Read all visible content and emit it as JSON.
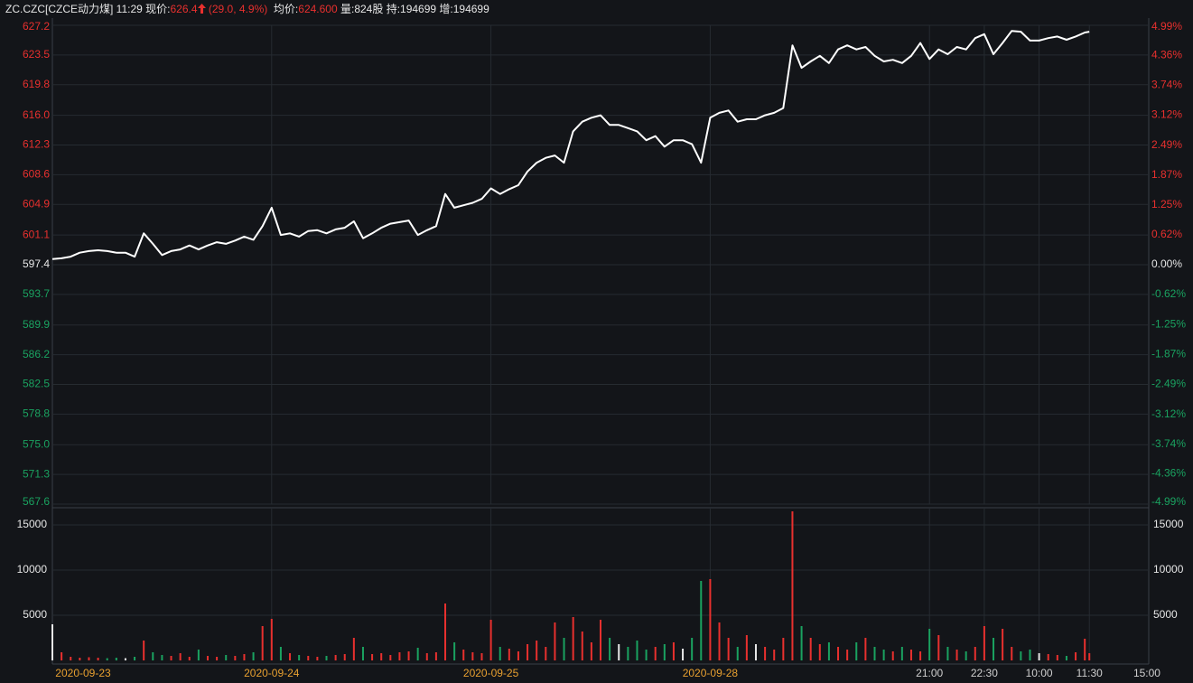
{
  "header": {
    "symbol_time": "ZC.CZC[CZCE动力煤] 11:29",
    "price_label": "现价:",
    "price": "626.4",
    "change": "(29.0, 4.9%)",
    "avg_label": "均价:",
    "avg": "624.600",
    "stats": "量:824股 持:194699 增:194699"
  },
  "chart_data": [
    {
      "type": "line",
      "color": "#ffffff",
      "x": [
        0,
        10,
        20,
        30,
        40,
        50,
        60,
        70,
        80,
        90,
        100,
        110,
        120,
        130,
        140,
        150,
        160,
        170,
        180,
        190,
        200,
        210,
        220,
        230,
        240,
        250,
        260,
        270,
        280,
        290,
        300,
        310,
        320,
        330,
        340,
        350,
        360,
        370,
        380,
        390,
        400,
        410,
        420,
        430,
        440,
        450,
        460,
        470,
        480,
        490,
        500,
        510,
        520,
        530,
        540,
        550,
        560,
        570,
        580,
        590,
        600,
        610,
        620,
        630,
        640,
        650,
        660,
        670,
        680,
        690,
        700,
        710,
        720,
        730,
        740,
        750,
        760,
        770,
        780,
        790,
        800,
        810,
        820,
        830,
        840,
        850,
        860,
        870,
        880,
        890,
        900,
        910,
        920,
        930,
        940,
        950,
        960,
        970,
        980,
        990,
        1000,
        1010,
        1020,
        1030,
        1040,
        1050,
        1060,
        1070,
        1080,
        1090,
        1100,
        1110,
        1120,
        1130,
        1135
      ],
      "values": [
        598.1,
        598.2,
        598.4,
        598.9,
        599.1,
        599.2,
        599.1,
        598.9,
        598.9,
        598.4,
        601.3,
        600.0,
        598.6,
        599.1,
        599.3,
        599.8,
        599.3,
        599.8,
        600.2,
        600.0,
        600.4,
        600.9,
        600.5,
        602.2,
        604.5,
        601.1,
        601.3,
        600.9,
        601.6,
        601.7,
        601.3,
        601.8,
        602.0,
        602.8,
        600.7,
        601.3,
        602.0,
        602.5,
        602.7,
        602.9,
        601.1,
        601.7,
        602.2,
        606.2,
        604.5,
        604.8,
        605.1,
        605.6,
        606.9,
        606.2,
        606.8,
        607.3,
        609.0,
        610.1,
        610.7,
        611.0,
        610.1,
        614.0,
        615.2,
        615.7,
        616.0,
        614.8,
        614.8,
        614.4,
        614.0,
        612.9,
        613.4,
        612.1,
        612.9,
        612.9,
        612.4,
        610.1,
        615.7,
        616.3,
        616.6,
        615.2,
        615.5,
        615.5,
        616.0,
        616.3,
        616.9,
        624.7,
        621.9,
        622.7,
        623.4,
        622.5,
        624.2,
        624.7,
        624.2,
        624.5,
        623.4,
        622.7,
        622.9,
        622.5,
        623.4,
        625.0,
        623.0,
        624.2,
        623.6,
        624.5,
        624.2,
        625.6,
        626.1,
        623.6,
        625.0,
        626.5,
        626.4,
        625.3,
        625.3,
        625.6,
        625.8,
        625.4,
        625.8,
        626.3,
        626.4
      ],
      "xlim": [
        0,
        1200
      ],
      "ylim": [
        567.6,
        627.2
      ],
      "yticks": [
        627.2,
        623.5,
        619.8,
        {
          "value": 616,
          "label": "616.0"
        },
        612.3,
        608.6,
        604.9,
        601.1,
        597.4,
        593.7,
        589.9,
        586.2,
        582.5,
        578.8,
        {
          "value": 575,
          "label": "575.0"
        },
        571.3,
        567.6
      ],
      "y2lim": [
        -4.99,
        4.99
      ],
      "y2ticks": [
        {
          "value": 4.99,
          "label": "4.99%"
        },
        {
          "value": 4.36,
          "label": "4.36%"
        },
        {
          "value": 3.74,
          "label": "3.74%"
        },
        {
          "value": 3.12,
          "label": "3.12%"
        },
        {
          "value": 2.49,
          "label": "2.49%"
        },
        {
          "value": 1.87,
          "label": "1.87%"
        },
        {
          "value": 1.25,
          "label": "1.25%"
        },
        {
          "value": 0.62,
          "label": "0.62%"
        },
        {
          "value": 0,
          "label": "0.00%"
        },
        {
          "value": -0.62,
          "label": "-0.62%"
        },
        {
          "value": -1.25,
          "label": "-1.25%"
        },
        {
          "value": -1.87,
          "label": "-1.87%"
        },
        {
          "value": -2.49,
          "label": "-2.49%"
        },
        {
          "value": -3.12,
          "label": "-3.12%"
        },
        {
          "value": -3.74,
          "label": "-3.74%"
        },
        {
          "value": -4.36,
          "label": "-4.36%"
        },
        {
          "value": -4.99,
          "label": "-4.99%"
        }
      ],
      "up_color": "#e8302e",
      "down_color": "#1aa260",
      "grid": true
    },
    {
      "type": "bar",
      "up_color": "#e8302e",
      "down_color": "#1aa260",
      "flat_color": "#e6e6e6",
      "x": [
        0,
        10,
        20,
        30,
        40,
        50,
        60,
        70,
        80,
        90,
        100,
        110,
        120,
        130,
        140,
        150,
        160,
        170,
        180,
        190,
        200,
        210,
        220,
        230,
        240,
        250,
        260,
        270,
        280,
        290,
        300,
        310,
        320,
        330,
        340,
        350,
        360,
        370,
        380,
        390,
        400,
        410,
        420,
        430,
        440,
        450,
        460,
        470,
        480,
        490,
        500,
        510,
        520,
        530,
        540,
        550,
        560,
        570,
        580,
        590,
        600,
        610,
        620,
        630,
        640,
        650,
        660,
        670,
        680,
        690,
        700,
        710,
        720,
        730,
        740,
        750,
        760,
        770,
        780,
        790,
        800,
        810,
        820,
        830,
        840,
        850,
        860,
        870,
        880,
        890,
        900,
        910,
        920,
        930,
        940,
        950,
        960,
        970,
        980,
        990,
        1000,
        1010,
        1020,
        1030,
        1040,
        1050,
        1060,
        1070,
        1080,
        1090,
        1100,
        1110,
        1120,
        1130,
        1135
      ],
      "values": [
        4000,
        900,
        400,
        300,
        350,
        300,
        250,
        300,
        250,
        400,
        2200,
        900,
        600,
        500,
        800,
        400,
        1200,
        500,
        400,
        600,
        500,
        700,
        900,
        3800,
        4600,
        1500,
        800,
        600,
        500,
        400,
        500,
        600,
        700,
        2500,
        1500,
        700,
        800,
        600,
        900,
        1000,
        1400,
        800,
        900,
        6300,
        2000,
        1200,
        900,
        800,
        4500,
        1500,
        1300,
        1000,
        1800,
        2200,
        1500,
        4200,
        2500,
        4800,
        3200,
        2000,
        4500,
        2500,
        1800,
        1500,
        2200,
        1200,
        1500,
        1800,
        2000,
        1300,
        2500,
        8800,
        9000,
        4200,
        2500,
        1500,
        2800,
        1800,
        1500,
        1200,
        2500,
        16500,
        3800,
        2500,
        1800,
        2000,
        1500,
        1200,
        2000,
        2500,
        1500,
        1200,
        1000,
        1500,
        1200,
        1000,
        3500,
        2800,
        1500,
        1200,
        1000,
        1500,
        3800,
        2500,
        3500,
        1500,
        1000,
        1200,
        800,
        700,
        600,
        500,
        900,
        2400,
        800
      ],
      "xlim": [
        0,
        1200
      ],
      "ylim": [
        0,
        16900
      ],
      "yticks": [
        15000,
        10000,
        5000
      ],
      "xticks": [
        {
          "value": 0,
          "label": "2020-09-23"
        },
        {
          "value": 240,
          "label": "2020-09-24"
        },
        {
          "value": 480,
          "label": "2020-09-25"
        },
        {
          "value": 720,
          "label": "2020-09-28"
        },
        {
          "value": 960,
          "label": "21:00"
        },
        {
          "value": 1020,
          "label": "22:30"
        },
        {
          "value": 1080,
          "label": "10:00"
        },
        {
          "value": 1135,
          "label": "11:30"
        },
        {
          "value": 1198,
          "label": "15:00"
        }
      ],
      "date_color": "#e8a030",
      "time_color": "#cfcfcf"
    }
  ]
}
